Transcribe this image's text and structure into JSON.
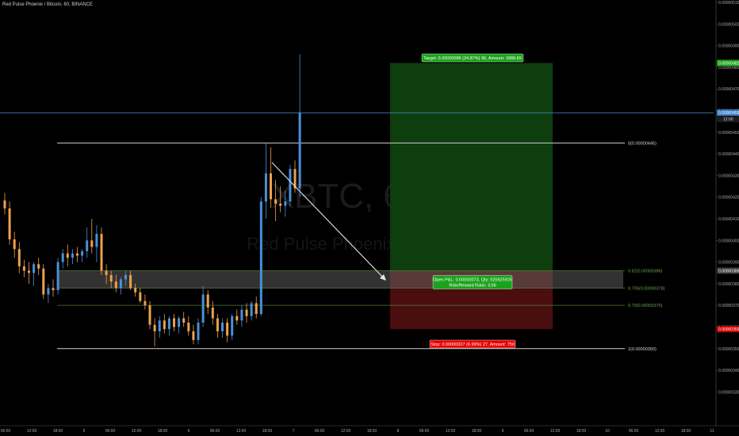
{
  "symbol_title": "Red Pulse Phoenix / Bitcoin, 60, BINANCE",
  "watermark": {
    "ticker": "XBTC, 60",
    "subtitle": "Red Pulse Phoenix / Bitcoin"
  },
  "colors": {
    "background": "#000000",
    "up": "#4a90d9",
    "down": "#f0a04b",
    "profit_zone": "#0e3d0e",
    "loss_zone": "#4a0e0e",
    "target_label": "#1aa31a",
    "stop_label": "#e60000",
    "price_line": "#4a90d9",
    "fib_green": "#6aa84f"
  },
  "chart_data": {
    "type": "candlestick",
    "title": "Red Pulse Phoenix / Bitcoin, 60, BINANCE",
    "ylim": [
      3.25e-06,
      5.1e-06
    ],
    "y_axis_ticks": [
      "0.00000510",
      "0.00000500",
      "0.00000490",
      "0.00000480",
      "0.00000470",
      "0.00000460",
      "0.00000450",
      "0.00000440",
      "0.00000430",
      "0.00000420",
      "0.00000410",
      "0.00000400",
      "0.00000390",
      "0.00000380",
      "0.00000370",
      "0.00000360",
      "0.00000350",
      "0.00000340",
      "0.00000330"
    ],
    "x_axis_ticks": [
      "06:00",
      "12:00",
      "18:00",
      "5",
      "06:00",
      "12:00",
      "18:00",
      "6",
      "06:00",
      "12:00",
      "18:00",
      "7",
      "06:00",
      "12:00",
      "18:00",
      "8",
      "06:00",
      "12:00",
      "18:00",
      "9",
      "06:00",
      "12:00",
      "18:00",
      "10",
      "06:00",
      "12:00",
      "18:00",
      "11"
    ],
    "candles": [
      {
        "o": 4.185e-06,
        "h": 4.22e-06,
        "l": 4.12e-06,
        "c": 4.148e-06
      },
      {
        "o": 4.148e-06,
        "h": 4.18e-06,
        "l": 3.98e-06,
        "c": 4.005e-06
      },
      {
        "o": 4.005e-06,
        "h": 4.04e-06,
        "l": 3.92e-06,
        "c": 3.96e-06
      },
      {
        "o": 3.96e-06,
        "h": 3.992e-06,
        "l": 3.848e-06,
        "c": 3.88e-06
      },
      {
        "o": 3.88e-06,
        "h": 3.91e-06,
        "l": 3.83e-06,
        "c": 3.86e-06
      },
      {
        "o": 3.86e-06,
        "h": 3.9e-06,
        "l": 3.8e-06,
        "c": 3.85e-06
      },
      {
        "o": 3.85e-06,
        "h": 3.9e-06,
        "l": 3.79e-06,
        "c": 3.89e-06
      },
      {
        "o": 3.89e-06,
        "h": 3.92e-06,
        "l": 3.84e-06,
        "c": 3.87e-06
      },
      {
        "o": 3.87e-06,
        "h": 3.89e-06,
        "l": 3.73e-06,
        "c": 3.75e-06
      },
      {
        "o": 3.75e-06,
        "h": 3.8e-06,
        "l": 3.71e-06,
        "c": 3.78e-06
      },
      {
        "o": 3.78e-06,
        "h": 3.82e-06,
        "l": 3.74e-06,
        "c": 3.77e-06
      },
      {
        "o": 3.77e-06,
        "h": 3.92e-06,
        "l": 3.75e-06,
        "c": 3.9e-06
      },
      {
        "o": 3.9e-06,
        "h": 3.96e-06,
        "l": 3.87e-06,
        "c": 3.94e-06
      },
      {
        "o": 3.94e-06,
        "h": 3.98e-06,
        "l": 3.88e-06,
        "c": 3.92e-06
      },
      {
        "o": 3.92e-06,
        "h": 3.96e-06,
        "l": 3.89e-06,
        "c": 3.94e-06
      },
      {
        "o": 3.94e-06,
        "h": 3.97e-06,
        "l": 3.9e-06,
        "c": 3.93e-06
      },
      {
        "o": 3.93e-06,
        "h": 3.96e-06,
        "l": 3.9e-06,
        "c": 3.95e-06
      },
      {
        "o": 3.95e-06,
        "h": 4.06e-06,
        "l": 3.92e-06,
        "c": 4e-06
      },
      {
        "o": 4e-06,
        "h": 4.1e-06,
        "l": 3.94e-06,
        "c": 3.97e-06
      },
      {
        "o": 3.97e-06,
        "h": 4.07e-06,
        "l": 3.9e-06,
        "c": 4.03e-06
      },
      {
        "o": 4.03e-06,
        "h": 4.06e-06,
        "l": 3.84e-06,
        "c": 3.86e-06
      },
      {
        "o": 3.86e-06,
        "h": 3.89e-06,
        "l": 3.8e-06,
        "c": 3.84e-06
      },
      {
        "o": 3.84e-06,
        "h": 3.86e-06,
        "l": 3.78e-06,
        "c": 3.81e-06
      },
      {
        "o": 3.81e-06,
        "h": 3.84e-06,
        "l": 3.76e-06,
        "c": 3.78e-06
      },
      {
        "o": 3.78e-06,
        "h": 3.83e-06,
        "l": 3.75e-06,
        "c": 3.82e-06
      },
      {
        "o": 3.82e-06,
        "h": 3.86e-06,
        "l": 3.79e-06,
        "c": 3.84e-06
      },
      {
        "o": 3.84e-06,
        "h": 3.86e-06,
        "l": 3.77e-06,
        "c": 3.78e-06
      },
      {
        "o": 3.78e-06,
        "h": 3.8e-06,
        "l": 3.74e-06,
        "c": 3.76e-06
      },
      {
        "o": 3.76e-06,
        "h": 3.78e-06,
        "l": 3.71e-06,
        "c": 3.72e-06
      },
      {
        "o": 3.72e-06,
        "h": 3.75e-06,
        "l": 3.68e-06,
        "c": 3.7e-06
      },
      {
        "o": 3.7e-06,
        "h": 3.72e-06,
        "l": 3.59e-06,
        "c": 3.61e-06
      },
      {
        "o": 3.61e-06,
        "h": 3.64e-06,
        "l": 3.51e-06,
        "c": 3.58e-06
      },
      {
        "o": 3.58e-06,
        "h": 3.65e-06,
        "l": 3.55e-06,
        "c": 3.63e-06
      },
      {
        "o": 3.63e-06,
        "h": 3.66e-06,
        "l": 3.57e-06,
        "c": 3.59e-06
      },
      {
        "o": 3.59e-06,
        "h": 3.65e-06,
        "l": 3.56e-06,
        "c": 3.64e-06
      },
      {
        "o": 3.64e-06,
        "h": 3.66e-06,
        "l": 3.58e-06,
        "c": 3.6e-06
      },
      {
        "o": 3.6e-06,
        "h": 3.65e-06,
        "l": 3.57e-06,
        "c": 3.64e-06
      },
      {
        "o": 3.64e-06,
        "h": 3.67e-06,
        "l": 3.6e-06,
        "c": 3.62e-06
      },
      {
        "o": 3.62e-06,
        "h": 3.65e-06,
        "l": 3.56e-06,
        "c": 3.58e-06
      },
      {
        "o": 3.58e-06,
        "h": 3.61e-06,
        "l": 3.52e-06,
        "c": 3.54e-06
      },
      {
        "o": 3.54e-06,
        "h": 3.64e-06,
        "l": 3.52e-06,
        "c": 3.62e-06
      },
      {
        "o": 3.62e-06,
        "h": 3.79e-06,
        "l": 3.6e-06,
        "c": 3.75e-06
      },
      {
        "o": 3.75e-06,
        "h": 3.77e-06,
        "l": 3.66e-06,
        "c": 3.69e-06
      },
      {
        "o": 3.69e-06,
        "h": 3.72e-06,
        "l": 3.61e-06,
        "c": 3.64e-06
      },
      {
        "o": 3.64e-06,
        "h": 3.66e-06,
        "l": 3.55e-06,
        "c": 3.58e-06
      },
      {
        "o": 3.58e-06,
        "h": 3.64e-06,
        "l": 3.55e-06,
        "c": 3.62e-06
      },
      {
        "o": 3.62e-06,
        "h": 3.64e-06,
        "l": 3.53e-06,
        "c": 3.56e-06
      },
      {
        "o": 3.56e-06,
        "h": 3.66e-06,
        "l": 3.54e-06,
        "c": 3.65e-06
      },
      {
        "o": 3.65e-06,
        "h": 3.68e-06,
        "l": 3.61e-06,
        "c": 3.63e-06
      },
      {
        "o": 3.63e-06,
        "h": 3.7e-06,
        "l": 3.6e-06,
        "c": 3.68e-06
      },
      {
        "o": 3.68e-06,
        "h": 3.71e-06,
        "l": 3.62e-06,
        "c": 3.65e-06
      },
      {
        "o": 3.65e-06,
        "h": 3.72e-06,
        "l": 3.63e-06,
        "c": 3.71e-06
      },
      {
        "o": 3.71e-06,
        "h": 3.74e-06,
        "l": 3.64e-06,
        "c": 3.66e-06
      },
      {
        "o": 3.66e-06,
        "h": 4.2e-06,
        "l": 3.65e-06,
        "c": 4.18e-06
      },
      {
        "o": 4.18e-06,
        "h": 4.45e-06,
        "l": 4.1e-06,
        "c": 4.31e-06
      },
      {
        "o": 4.31e-06,
        "h": 4.43e-06,
        "l": 4.15e-06,
        "c": 4.19e-06
      },
      {
        "o": 4.19e-06,
        "h": 4.28e-06,
        "l": 4.09e-06,
        "c": 4.17e-06
      },
      {
        "o": 4.17e-06,
        "h": 4.25e-06,
        "l": 4.13e-06,
        "c": 4.16e-06
      },
      {
        "o": 4.16e-06,
        "h": 4.23e-06,
        "l": 4.11e-06,
        "c": 4.18e-06
      },
      {
        "o": 4.18e-06,
        "h": 4.35e-06,
        "l": 4.16e-06,
        "c": 4.33e-06
      },
      {
        "o": 4.33e-06,
        "h": 4.37e-06,
        "l": 4.22e-06,
        "c": 4.24e-06
      },
      {
        "o": 4.24e-06,
        "h": 4.86e-06,
        "l": 4.2e-06,
        "c": 4.59e-06
      }
    ],
    "current_price": "0.00000459",
    "current_time_label": "12:00",
    "fibonacci": [
      {
        "ratio": "0",
        "price": 4.45e-06,
        "label": "0(0.00000445)"
      },
      {
        "ratio": "0.62",
        "price": 3.86e-06,
        "label": "0.62(0.00000386)"
      },
      {
        "ratio": "0.705",
        "price": 3.78e-06,
        "label": "0.705(0.00000378)"
      },
      {
        "ratio": "0.79",
        "price": 3.7e-06,
        "label": "0.79(0.00000370)"
      },
      {
        "ratio": "1",
        "price": 3.5e-06,
        "label": "1(0.00000350)"
      }
    ],
    "position": {
      "entry": 3.86e-06,
      "entry_label": "0.00000386",
      "target": 4.82e-06,
      "target_label": "0.00000482",
      "stop": 3.59e-06,
      "stop_label": "0.00000359",
      "target_text": "Target: 0.00000096 (24.87%) 96, Amount: 1888.89",
      "open_text": "Open P&L: 0.00000073, Qty: 925925925",
      "ratio_text": "Risk/Reward Ratio: 3.56",
      "stop_text": "Stop: 0.00000027 (6.99%) 27, Amount: 750"
    }
  }
}
